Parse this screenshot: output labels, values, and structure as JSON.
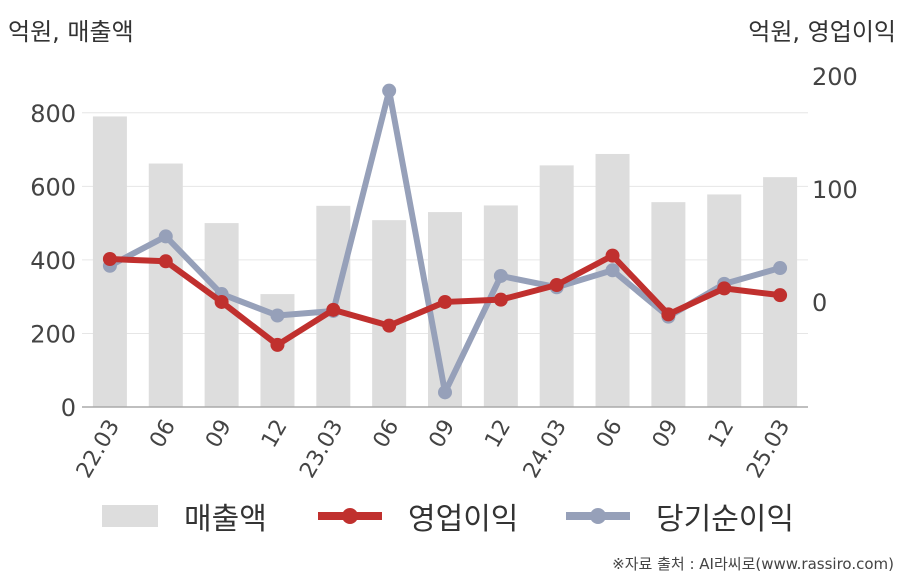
{
  "units": {
    "left": "억원, 매출액",
    "right": "억원, 영업이익"
  },
  "legend": {
    "sales": "매출액",
    "operating": "영업이익",
    "net": "당기순이익"
  },
  "source": "※자료 출처 : AI라씨로(www.rassiro.com)",
  "colors": {
    "sales": "#dddddd",
    "operating": "#c0302e",
    "net": "#96a0b9",
    "grid": "#e6e6e6",
    "axis": "#aaaaaa"
  },
  "chart_data": {
    "type": "bar",
    "categories": [
      "22.03",
      "06",
      "09",
      "12",
      "23.03",
      "06",
      "09",
      "12",
      "24.03",
      "06",
      "09",
      "12",
      "25.03"
    ],
    "y_left": {
      "ticks": [
        0,
        200,
        400,
        600,
        800
      ],
      "range": [
        0,
        900
      ]
    },
    "y_right": {
      "ticks": [
        0,
        100,
        200
      ],
      "range": [
        -93,
        200
      ]
    },
    "grid": true,
    "legend_position": "bottom",
    "series": [
      {
        "name": "매출액",
        "type": "bar",
        "axis": "left",
        "values": [
          790,
          662,
          500,
          307,
          547,
          508,
          530,
          548,
          657,
          688,
          557,
          578,
          625
        ]
      },
      {
        "name": "영업이익",
        "type": "line",
        "axis": "right",
        "values": [
          38,
          36,
          0,
          -38,
          -7,
          -21,
          0,
          2,
          15,
          41,
          -11,
          12,
          6
        ]
      },
      {
        "name": "당기순이익",
        "type": "line",
        "axis": "right",
        "values": [
          32,
          58,
          7,
          -12,
          -8,
          187,
          -80,
          23,
          13,
          28,
          -13,
          16,
          30
        ]
      }
    ]
  }
}
